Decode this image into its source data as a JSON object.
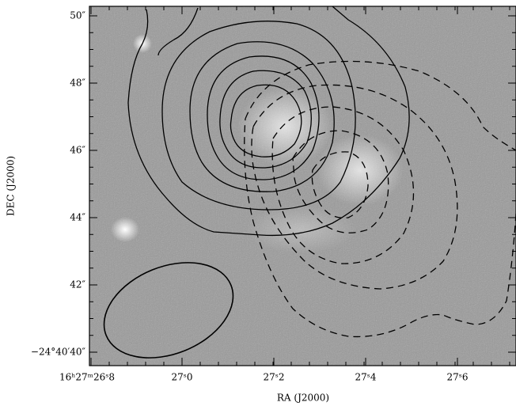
{
  "figure": {
    "x_axis": {
      "label": "RA (J2000)",
      "tick_labels": [
        "16ʰ27ᵐ26ˢ8",
        "27ˢ0",
        "27ˢ2",
        "27ˢ4",
        "27ˢ6"
      ]
    },
    "y_axis": {
      "label": "DEC (J2000)",
      "tick_labels": [
        "50″",
        "48″",
        "46″",
        "44″",
        "42″",
        "−24°40′40″"
      ]
    }
  }
}
